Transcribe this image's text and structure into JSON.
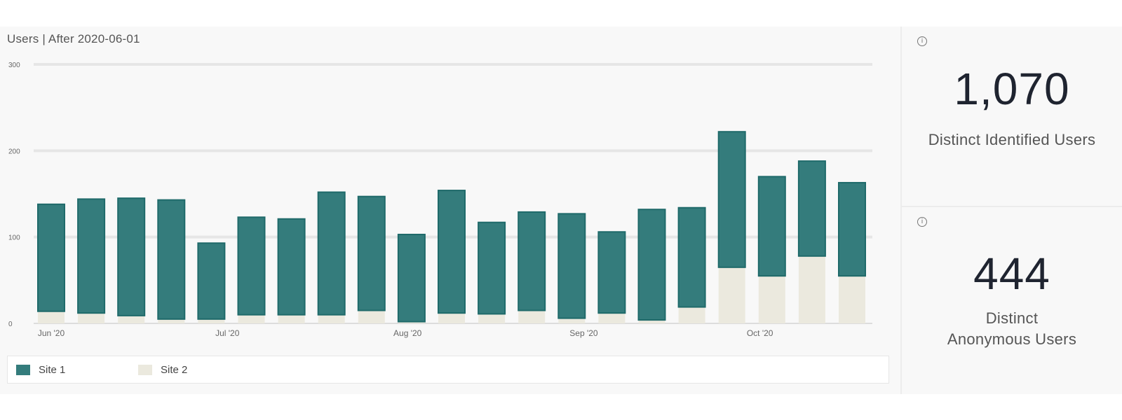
{
  "chart_title": "Users | After 2020-06-01",
  "chart_data": {
    "type": "bar",
    "stacked": true,
    "title": "Users | After 2020-06-01",
    "xlabel": "",
    "ylabel": "",
    "ylim": [
      0,
      300
    ],
    "yticks": [
      "0",
      "100",
      "200",
      "300"
    ],
    "grid": true,
    "legend_position": "bottom-left",
    "x_tick_labels": [
      "Jun '20",
      "Jul '20",
      "Aug '20",
      "Sep '20",
      "Oct '20"
    ],
    "x_tick_positions": [
      0,
      4.4,
      8.9,
      13.3,
      17.7
    ],
    "series": [
      {
        "name": "Site 1",
        "color": "#347c7c",
        "values": [
          124,
          132,
          136,
          138,
          88,
          113,
          111,
          142,
          132,
          101,
          142,
          106,
          114,
          121,
          94,
          128,
          115,
          157,
          115,
          110,
          108
        ]
      },
      {
        "name": "Site 2",
        "color": "#ebe9de",
        "values": [
          14,
          12,
          9,
          5,
          5,
          10,
          10,
          10,
          15,
          2,
          12,
          11,
          15,
          6,
          12,
          4,
          19,
          65,
          55,
          78,
          55
        ]
      }
    ]
  },
  "legend": [
    {
      "label": "Site 1",
      "color": "#347c7c"
    },
    {
      "label": "Site 2",
      "color": "#ebe9de"
    }
  ],
  "stats": [
    {
      "info_icon": "info-icon",
      "value": "1,070",
      "label": "Distinct Identified Users"
    },
    {
      "info_icon": "info-icon",
      "value": "444",
      "label": "Distinct Anonymous Users"
    }
  ]
}
